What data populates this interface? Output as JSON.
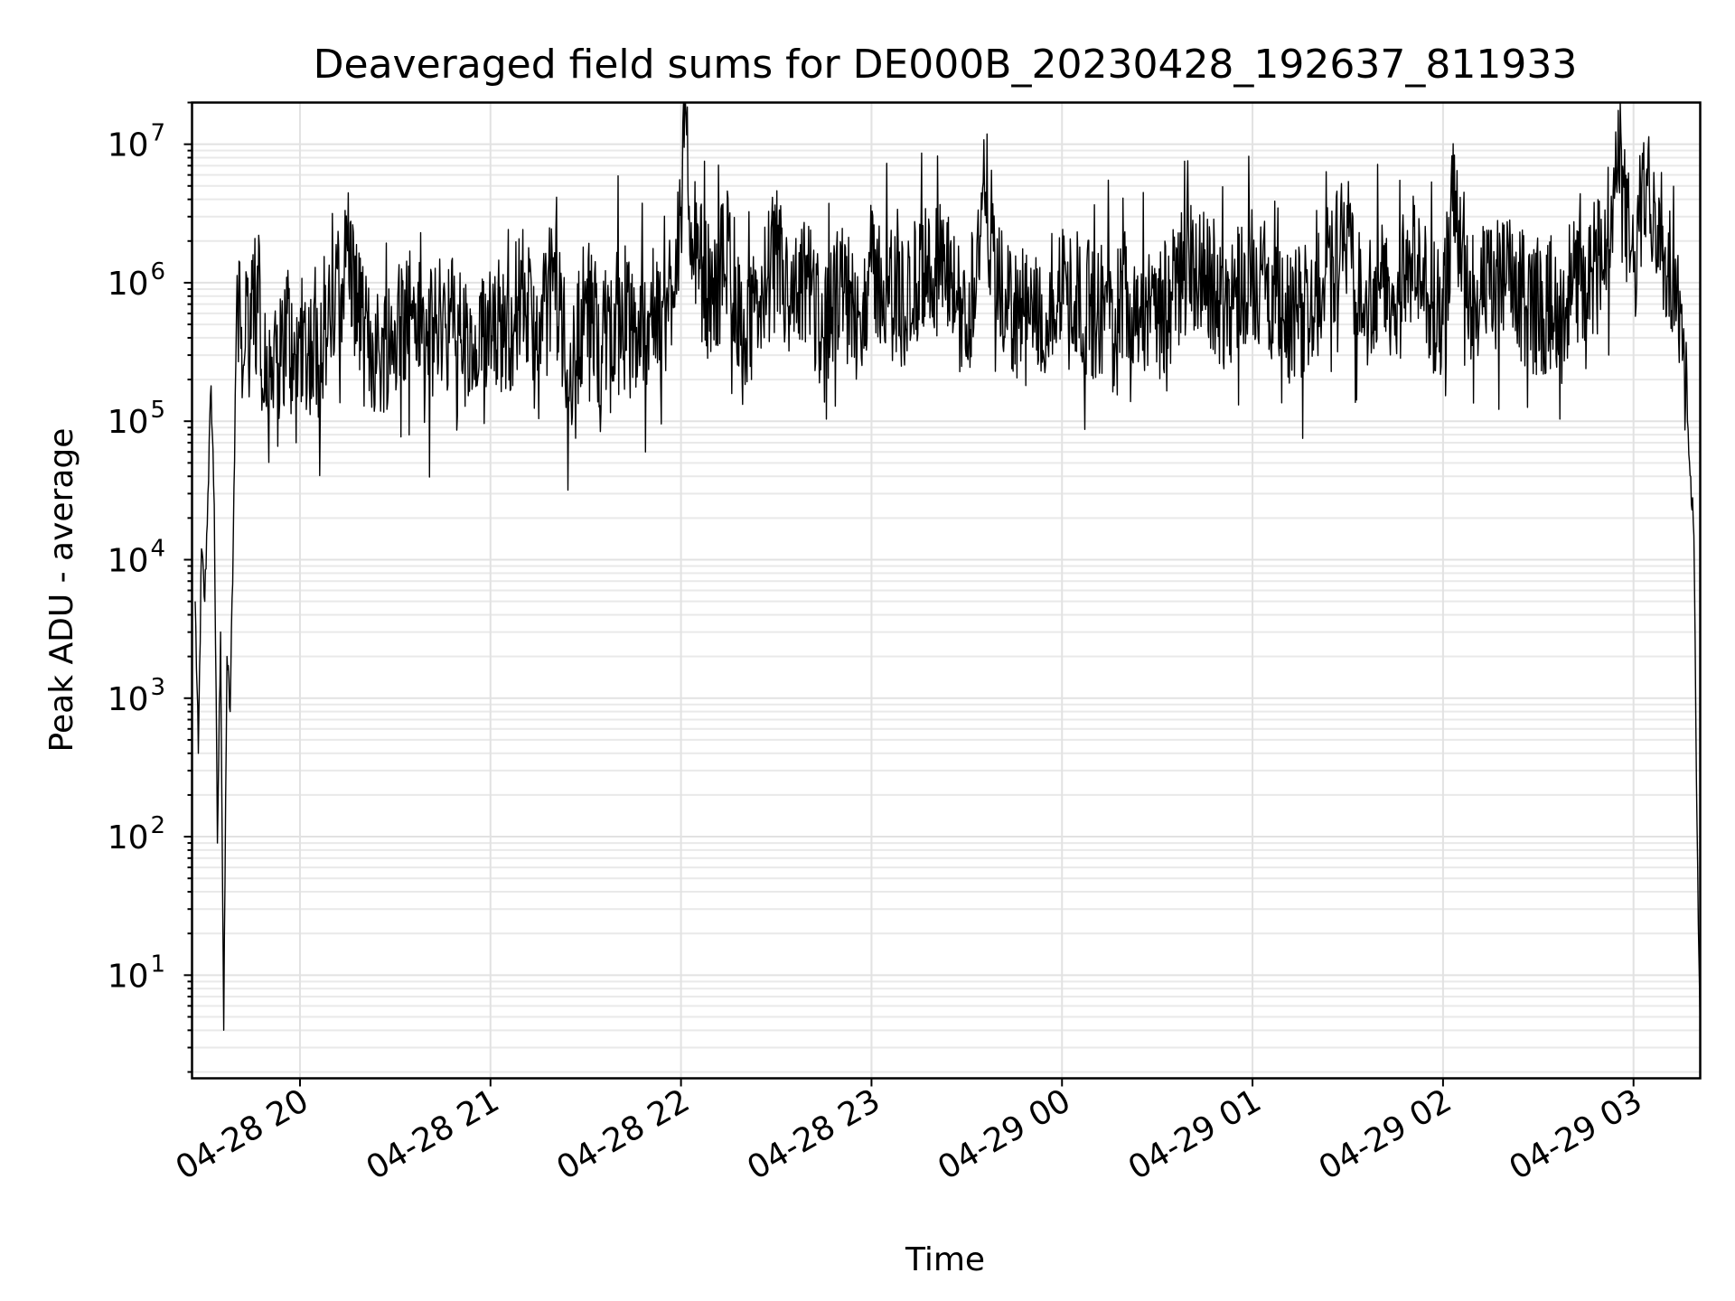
{
  "chart_data": {
    "type": "line",
    "title": "Deaveraged field sums for DE000B_20230428_192637_811933",
    "xlabel": "Time",
    "ylabel": "Peak ADU - average",
    "yscale": "log",
    "ylim": [
      1.8,
      20000000
    ],
    "xlim": [
      "2023-04-28 19:26",
      "2023-04-29 03:21"
    ],
    "x_ticks": [
      "04-28 20",
      "04-28 21",
      "04-28 22",
      "04-28 23",
      "04-29 00",
      "04-29 01",
      "04-29 02",
      "04-29 03"
    ],
    "y_ticks": [
      {
        "base": "10",
        "exp": "1",
        "value": 10
      },
      {
        "base": "10",
        "exp": "2",
        "value": 100
      },
      {
        "base": "10",
        "exp": "3",
        "value": 1000
      },
      {
        "base": "10",
        "exp": "4",
        "value": 10000
      },
      {
        "base": "10",
        "exp": "5",
        "value": 100000
      },
      {
        "base": "10",
        "exp": "6",
        "value": 1000000
      },
      {
        "base": "10",
        "exp": "7",
        "value": 10000000
      }
    ],
    "grid": true,
    "line_color": "#000000",
    "series": [
      {
        "x": [
          "2023-04-28 19:27",
          "2023-04-28 19:28",
          "2023-04-28 19:29",
          "2023-04-28 19:30",
          "2023-04-28 19:31",
          "2023-04-28 19:32",
          "2023-04-28 19:33",
          "2023-04-28 19:34",
          "2023-04-28 19:35",
          "2023-04-28 19:36",
          "2023-04-28 19:37",
          "2023-04-28 19:38",
          "2023-04-28 19:39",
          "2023-04-28 19:40",
          "2023-04-28 19:41",
          "2023-04-28 19:42",
          "2023-04-28 19:43",
          "2023-04-28 19:44",
          "2023-04-28 19:45",
          "2023-04-28 19:46",
          "2023-04-28 19:47",
          "2023-04-28 19:48",
          "2023-04-28 19:49",
          "2023-04-28 19:50",
          "2023-04-28 19:52",
          "2023-04-28 19:54",
          "2023-04-28 19:56",
          "2023-04-28 19:58",
          "2023-04-28 20:00",
          "2023-04-28 20:05",
          "2023-04-28 20:10",
          "2023-04-28 20:15",
          "2023-04-28 20:20",
          "2023-04-28 20:25",
          "2023-04-28 20:30",
          "2023-04-28 20:35",
          "2023-04-28 20:40",
          "2023-04-28 20:45",
          "2023-04-28 20:50",
          "2023-04-28 20:55",
          "2023-04-28 21:00",
          "2023-04-28 21:05",
          "2023-04-28 21:10",
          "2023-04-28 21:15",
          "2023-04-28 21:20",
          "2023-04-28 21:25",
          "2023-04-28 21:30",
          "2023-04-28 21:35",
          "2023-04-28 21:40",
          "2023-04-28 21:45",
          "2023-04-28 21:50",
          "2023-04-28 21:55",
          "2023-04-28 22:00",
          "2023-04-28 22:01",
          "2023-04-28 22:05",
          "2023-04-28 22:10",
          "2023-04-28 22:15",
          "2023-04-28 22:20",
          "2023-04-28 22:25",
          "2023-04-28 22:30",
          "2023-04-28 22:35",
          "2023-04-28 22:40",
          "2023-04-28 22:45",
          "2023-04-28 22:50",
          "2023-04-28 22:55",
          "2023-04-28 23:00",
          "2023-04-28 23:10",
          "2023-04-28 23:20",
          "2023-04-28 23:30",
          "2023-04-28 23:36",
          "2023-04-28 23:40",
          "2023-04-28 23:50",
          "2023-04-29 00:00",
          "2023-04-29 00:10",
          "2023-04-29 00:20",
          "2023-04-29 00:30",
          "2023-04-29 00:40",
          "2023-04-29 00:50",
          "2023-04-29 01:00",
          "2023-04-29 01:10",
          "2023-04-29 01:20",
          "2023-04-29 01:30",
          "2023-04-29 01:33",
          "2023-04-29 01:40",
          "2023-04-29 01:45",
          "2023-04-29 01:50",
          "2023-04-29 02:00",
          "2023-04-29 02:03",
          "2023-04-29 02:10",
          "2023-04-29 02:20",
          "2023-04-29 02:30",
          "2023-04-29 02:40",
          "2023-04-29 02:50",
          "2023-04-29 02:55",
          "2023-04-29 03:00",
          "2023-04-29 03:04",
          "2023-04-29 03:10",
          "2023-04-29 03:13",
          "2023-04-29 03:15",
          "2023-04-29 03:16",
          "2023-04-29 03:17",
          "2023-04-29 03:18",
          "2023-04-29 03:19",
          "2023-04-29 03:20",
          "2023-04-29 03:21"
        ],
        "y": [
          5000,
          400,
          12000,
          5000,
          30000,
          180000,
          25000,
          90,
          3000,
          4,
          2000,
          800,
          15000,
          600000,
          1400000,
          200000,
          1200000,
          150000,
          900000,
          250000,
          2200000,
          120000,
          600000,
          110000,
          500000,
          250000,
          600000,
          200000,
          400000,
          300000,
          500000,
          1700000,
          400000,
          300000,
          500000,
          700000,
          350000,
          600000,
          500000,
          200000,
          700000,
          400000,
          900000,
          300000,
          1200000,
          200000,
          800000,
          350000,
          700000,
          400000,
          600000,
          500000,
          3500000,
          9500000,
          1500000,
          700000,
          2000000,
          300000,
          800000,
          1600000,
          600000,
          1100000,
          400000,
          900000,
          600000,
          1200000,
          700000,
          1500000,
          500000,
          4500000,
          800000,
          500000,
          1000000,
          600000,
          900000,
          500000,
          1500000,
          700000,
          1200000,
          500000,
          800000,
          2500000,
          600000,
          1000000,
          700000,
          1500000,
          500000,
          3300000,
          800000,
          1000000,
          600000,
          900000,
          1500000,
          7000000,
          1200000,
          6000000,
          1800000,
          900000,
          600000,
          300000,
          100000,
          40000,
          15000,
          120,
          4
        ]
      }
    ]
  }
}
